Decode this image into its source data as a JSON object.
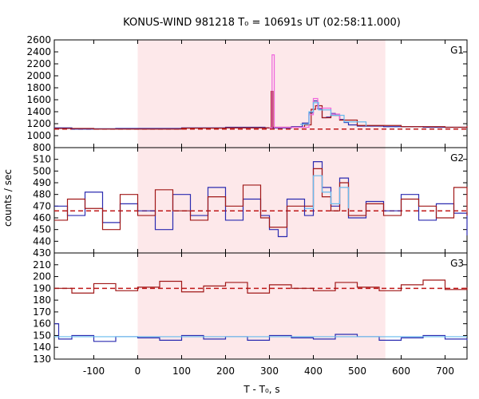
{
  "chart_data": {
    "type": "line",
    "title": "KONUS-WIND 981218 T₀ = 10691s UT (02:58:11.000)",
    "xlabel": "T - T₀, s",
    "ylabel": "counts / sec",
    "xlim": [
      -190,
      750
    ],
    "x_ticks": [
      -100,
      0,
      100,
      200,
      300,
      400,
      500,
      600,
      700
    ],
    "shaded_interval": [
      0,
      564
    ],
    "colors": {
      "blue_series": "#2b2bb0",
      "red_series": "#a01818",
      "magenta_series": "#ee66dd",
      "light_blue_series": "#66bbee",
      "red_baseline": "#c01818",
      "shade": "#fde8ea"
    },
    "panels": [
      {
        "label": "G1",
        "ylim": [
          1000,
          2600
        ],
        "y_ticks": [
          1000,
          1200,
          1400,
          1600,
          1800,
          2000,
          2200,
          2400,
          2600
        ],
        "lead_y_tick": 800,
        "baseline": 1110,
        "series": [
          {
            "color_key": "blue_series",
            "points": [
              [
                -190,
                1130
              ],
              [
                -150,
                1110
              ],
              [
                -100,
                1115
              ],
              [
                -50,
                1120
              ],
              [
                0,
                1120
              ],
              [
                100,
                1130
              ],
              [
                200,
                1140
              ],
              [
                290,
                1130
              ],
              [
                350,
                1150
              ],
              [
                375,
                1210
              ],
              [
                390,
                1380
              ],
              [
                400,
                1580
              ],
              [
                410,
                1450
              ],
              [
                420,
                1300
              ],
              [
                430,
                1310
              ],
              [
                440,
                1370
              ],
              [
                450,
                1340
              ],
              [
                460,
                1270
              ],
              [
                470,
                1220
              ],
              [
                480,
                1180
              ],
              [
                500,
                1160
              ],
              [
                560,
                1150
              ],
              [
                650,
                1140
              ],
              [
                750,
                1150
              ]
            ]
          },
          {
            "color_key": "red_series",
            "points": [
              [
                -190,
                1120
              ],
              [
                -100,
                1110
              ],
              [
                0,
                1110
              ],
              [
                100,
                1125
              ],
              [
                200,
                1130
              ],
              [
                300,
                1130
              ],
              [
                304,
                1740
              ],
              [
                308,
                1140
              ],
              [
                380,
                1180
              ],
              [
                395,
                1440
              ],
              [
                405,
                1500
              ],
              [
                420,
                1300
              ],
              [
                440,
                1340
              ],
              [
                460,
                1260
              ],
              [
                500,
                1170
              ],
              [
                600,
                1150
              ],
              [
                700,
                1140
              ],
              [
                750,
                1160
              ]
            ]
          },
          {
            "color_key": "magenta_series",
            "points": [
              [
                300,
                1130
              ],
              [
                306,
                2350
              ],
              [
                311,
                1140
              ],
              [
                390,
                1350
              ],
              [
                400,
                1620
              ],
              [
                410,
                1460
              ],
              [
                440,
                1360
              ],
              [
                460,
                1270
              ]
            ]
          },
          {
            "color_key": "light_blue_series",
            "points": [
              [
                370,
                1190
              ],
              [
                390,
                1400
              ],
              [
                400,
                1550
              ],
              [
                412,
                1430
              ],
              [
                440,
                1340
              ],
              [
                470,
                1230
              ],
              [
                520,
                1160
              ]
            ]
          }
        ]
      },
      {
        "label": "G2",
        "ylim": [
          430,
          520
        ],
        "y_ticks": [
          430,
          440,
          450,
          460,
          470,
          480,
          490,
          500,
          510
        ],
        "lead_y_tick": null,
        "baseline": 466,
        "series": [
          {
            "color_key": "blue_series",
            "points": [
              [
                -190,
                470
              ],
              [
                -160,
                462
              ],
              [
                -120,
                482
              ],
              [
                -80,
                456
              ],
              [
                -40,
                472
              ],
              [
                0,
                466
              ],
              [
                40,
                450
              ],
              [
                80,
                480
              ],
              [
                120,
                462
              ],
              [
                160,
                486
              ],
              [
                200,
                458
              ],
              [
                240,
                476
              ],
              [
                280,
                462
              ],
              [
                300,
                450
              ],
              [
                320,
                444
              ],
              [
                340,
                476
              ],
              [
                380,
                462
              ],
              [
                400,
                508
              ],
              [
                420,
                486
              ],
              [
                440,
                470
              ],
              [
                460,
                494
              ],
              [
                480,
                460
              ],
              [
                520,
                474
              ],
              [
                560,
                466
              ],
              [
                600,
                480
              ],
              [
                640,
                458
              ],
              [
                680,
                472
              ],
              [
                720,
                464
              ],
              [
                750,
                445
              ]
            ]
          },
          {
            "color_key": "red_series",
            "points": [
              [
                -190,
                458
              ],
              [
                -160,
                476
              ],
              [
                -120,
                468
              ],
              [
                -80,
                450
              ],
              [
                -40,
                480
              ],
              [
                0,
                462
              ],
              [
                40,
                484
              ],
              [
                80,
                466
              ],
              [
                120,
                458
              ],
              [
                160,
                478
              ],
              [
                200,
                470
              ],
              [
                240,
                488
              ],
              [
                280,
                460
              ],
              [
                300,
                452
              ],
              [
                340,
                470
              ],
              [
                380,
                470
              ],
              [
                400,
                502
              ],
              [
                420,
                478
              ],
              [
                440,
                466
              ],
              [
                460,
                490
              ],
              [
                480,
                462
              ],
              [
                520,
                472
              ],
              [
                560,
                462
              ],
              [
                600,
                476
              ],
              [
                640,
                470
              ],
              [
                680,
                460
              ],
              [
                720,
                486
              ],
              [
                750,
                462
              ]
            ]
          },
          {
            "color_key": "light_blue_series",
            "points": [
              [
                380,
                468
              ],
              [
                400,
                496
              ],
              [
                420,
                482
              ],
              [
                440,
                472
              ],
              [
                460,
                486
              ],
              [
                480,
                468
              ]
            ]
          }
        ]
      },
      {
        "label": "G3",
        "ylim": [
          130,
          220
        ],
        "y_ticks": [
          130,
          140,
          150,
          160,
          170,
          180,
          190,
          200,
          210
        ],
        "lead_y_tick": null,
        "baseline": 190,
        "series": [
          {
            "color_key": "red_series",
            "points": [
              [
                -190,
                190
              ],
              [
                -150,
                186
              ],
              [
                -100,
                194
              ],
              [
                -50,
                188
              ],
              [
                0,
                191
              ],
              [
                50,
                196
              ],
              [
                100,
                187
              ],
              [
                150,
                192
              ],
              [
                200,
                195
              ],
              [
                250,
                186
              ],
              [
                300,
                193
              ],
              [
                350,
                190
              ],
              [
                400,
                188
              ],
              [
                450,
                195
              ],
              [
                500,
                191
              ],
              [
                550,
                188
              ],
              [
                600,
                193
              ],
              [
                650,
                197
              ],
              [
                700,
                189
              ],
              [
                750,
                191
              ]
            ]
          },
          {
            "color_key": "blue_series",
            "points": [
              [
                -190,
                160
              ],
              [
                -180,
                147
              ],
              [
                -150,
                150
              ],
              [
                -100,
                145
              ],
              [
                -50,
                149
              ],
              [
                0,
                148
              ],
              [
                50,
                146
              ],
              [
                100,
                150
              ],
              [
                150,
                147
              ],
              [
                200,
                149
              ],
              [
                250,
                146
              ],
              [
                300,
                150
              ],
              [
                350,
                148
              ],
              [
                400,
                147
              ],
              [
                450,
                151
              ],
              [
                500,
                149
              ],
              [
                550,
                146
              ],
              [
                600,
                148
              ],
              [
                650,
                150
              ],
              [
                700,
                147
              ],
              [
                750,
                146
              ]
            ]
          },
          {
            "color_key": "light_blue_series",
            "points": [
              [
                -190,
                149
              ],
              [
                750,
                149
              ]
            ]
          }
        ]
      }
    ]
  }
}
